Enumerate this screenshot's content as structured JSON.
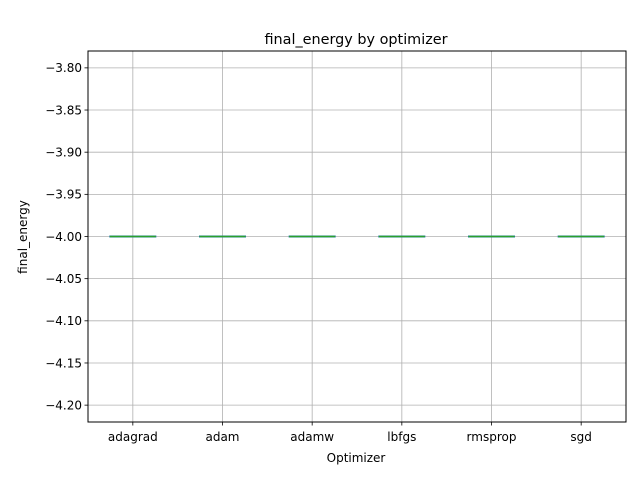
{
  "chart_data": {
    "type": "box",
    "title": "final_energy by optimizer",
    "xlabel": "Optimizer",
    "ylabel": "final_energy",
    "categories": [
      "adagrad",
      "adam",
      "adamw",
      "lbfgs",
      "rmsprop",
      "sgd"
    ],
    "values": [
      -4.0,
      -4.0,
      -4.0,
      -4.0,
      -4.0,
      -4.0
    ],
    "ylim": [
      -4.22,
      -3.78
    ],
    "yticks": [
      -3.8,
      -3.85,
      -3.9,
      -3.95,
      -4.0,
      -4.05,
      -4.1,
      -4.15,
      -4.2
    ],
    "ytick_labels": [
      "−3.80",
      "−3.85",
      "−3.90",
      "−3.95",
      "−4.00",
      "−4.05",
      "−4.10",
      "−4.15",
      "−4.20"
    ],
    "grid": true,
    "colors": {
      "median": "#2ca02c",
      "box": "#1f77b4",
      "grid": "#b0b0b0",
      "axis": "#000000"
    }
  }
}
